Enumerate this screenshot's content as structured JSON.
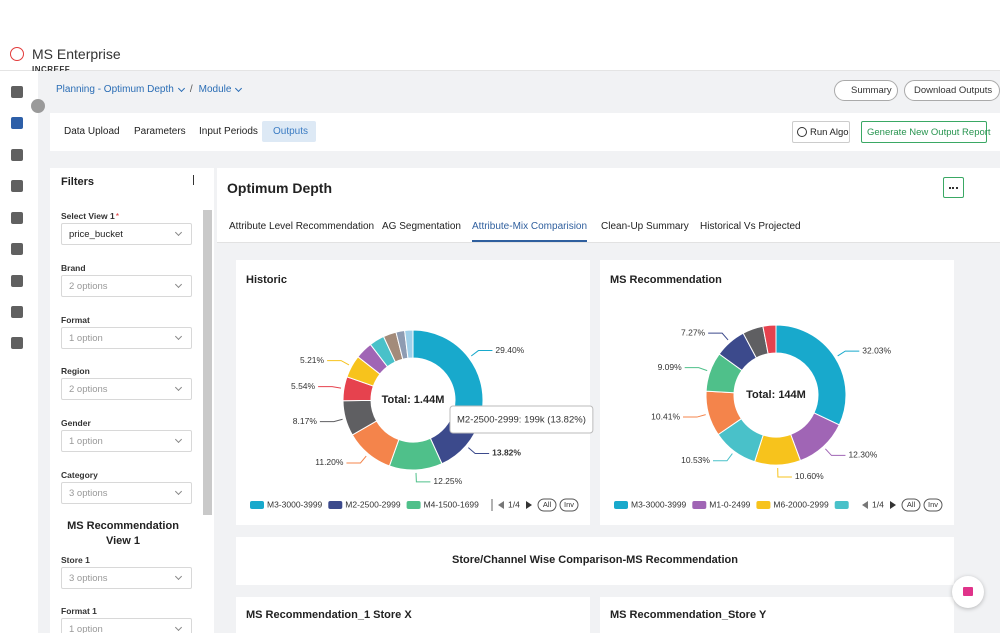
{
  "app": {
    "name": "MS Enterprise",
    "sub": "INCREFF"
  },
  "breadcrumb": {
    "items": [
      "Planning - Optimum Depth",
      "Module"
    ],
    "separator": "/"
  },
  "header_buttons": [
    "Summary",
    "Download Outputs"
  ],
  "tabs": {
    "items": [
      "Data Upload",
      "Parameters",
      "Input Periods",
      "Outputs"
    ],
    "active": 3
  },
  "actions": [
    "Run Algo",
    "Generate New Output Report"
  ],
  "filters": {
    "title": "Filters",
    "required_mark": "*",
    "fields": [
      {
        "label": "Select View 1",
        "required": true,
        "value": "price_bucket"
      },
      {
        "label": "Brand",
        "placeholder": "2 options"
      },
      {
        "label": "Format",
        "placeholder": "1 option"
      },
      {
        "label": "Region",
        "placeholder": "2 options"
      },
      {
        "label": "Gender",
        "placeholder": "1 option"
      },
      {
        "label": "Category",
        "placeholder": "3 options"
      }
    ],
    "section_title": "MS Recommendation View 1",
    "section_fields": [
      {
        "label": "Store 1",
        "placeholder": "3 options"
      },
      {
        "label": "Format 1",
        "placeholder": "1 option"
      }
    ]
  },
  "main": {
    "title": "Optimum Depth",
    "subtabs": {
      "items": [
        "Attribute Level Recommendation",
        "AG Segmentation",
        "Attribute-Mix Comparision",
        "Clean-Up Summary",
        "Historical Vs Projected"
      ],
      "active": 2
    },
    "comparison_title": "Store/Channel Wise Comparison-MS Recommendation",
    "lower_cards": [
      "MS Recommendation_1 Store X",
      "MS Recommendation_Store Y"
    ]
  },
  "chart_data": [
    {
      "type": "donut",
      "title": "Historic",
      "center_label": "Total: 1.44M",
      "categories": [
        "M3-3000-3999",
        "M2-2500-2999",
        "M4-1500-1699",
        null,
        null,
        null,
        null,
        null,
        null,
        null,
        null,
        null
      ],
      "values": [
        29.4,
        13.82,
        12.25,
        11.2,
        8.17,
        5.54,
        5.21,
        4,
        3.5,
        3,
        2,
        1.91
      ],
      "value_labels": [
        "29.40%",
        "13.82%",
        "12.25%",
        "11.20%",
        "8.17%",
        "5.54%",
        "5.21%",
        null,
        null,
        null,
        null,
        null
      ],
      "colors": [
        "#18a9cc",
        "#3c4a8c",
        "#4fc08a",
        "#f4844b",
        "#5f5f62",
        "#e6424e",
        "#f7c31c",
        "#a065b5",
        "#49c1c9",
        "#a38b7a",
        "#8e9cb3",
        "#9fd0ea"
      ],
      "highlight": 1,
      "tooltip": "M2-2500-2999: 199k (13.82%)",
      "legend_page": "1/4",
      "legend_buttons": [
        "All",
        "Inv"
      ]
    },
    {
      "type": "donut",
      "title": "MS Recommendation",
      "center_label": "Total: 144M",
      "categories": [
        "M3-3000-3999",
        "M1-0-2499",
        "M6-2000-2999",
        null,
        null,
        null,
        null,
        null,
        null
      ],
      "values": [
        32.03,
        12.3,
        10.6,
        10.53,
        10.41,
        9.09,
        7.27,
        4.77,
        3
      ],
      "value_labels": [
        "32.03%",
        "12.30%",
        "10.60%",
        "10.53%",
        "10.41%",
        "9.09%",
        "7.27%",
        null,
        null
      ],
      "colors": [
        "#18a9cc",
        "#a065b5",
        "#f7c31c",
        "#49c1c9",
        "#f4844b",
        "#4fc08a",
        "#3c4a8c",
        "#5f5f62",
        "#e6424e"
      ],
      "legend_page": "1/4",
      "legend_buttons": [
        "All",
        "Inv"
      ]
    }
  ]
}
